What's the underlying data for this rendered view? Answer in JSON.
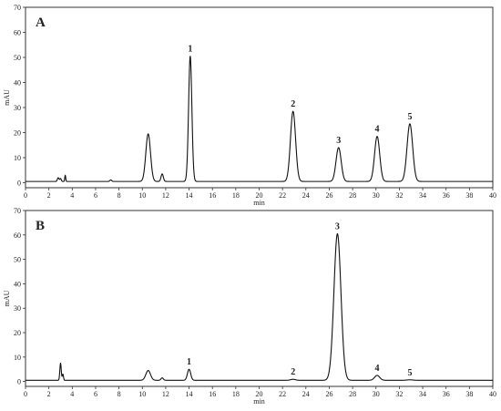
{
  "chart_data": [
    {
      "type": "line",
      "panel_label": "A",
      "xlabel": "min",
      "ylabel": "mAU",
      "xlim": [
        0,
        40
      ],
      "ylim": [
        -2,
        70
      ],
      "x_ticks": [
        0,
        2,
        4,
        6,
        8,
        10,
        12,
        14,
        16,
        18,
        20,
        22,
        24,
        26,
        28,
        30,
        32,
        34,
        36,
        38,
        40
      ],
      "y_ticks": [
        0,
        10,
        20,
        30,
        40,
        50,
        60,
        70
      ],
      "baseline": 0.5,
      "peaks": [
        {
          "t": 2.8,
          "h": 1.5,
          "w": 0.07
        },
        {
          "t": 3.0,
          "h": 1.2,
          "w": 0.06
        },
        {
          "t": 3.4,
          "h": 2.5,
          "w": 0.04
        },
        {
          "t": 7.3,
          "h": 0.6,
          "w": 0.08
        },
        {
          "t": 10.5,
          "h": 19.0,
          "w": 0.2
        },
        {
          "t": 11.7,
          "h": 3.0,
          "w": 0.1
        },
        {
          "t": 14.1,
          "h": 50.0,
          "w": 0.14,
          "label": "1"
        },
        {
          "t": 22.9,
          "h": 28.0,
          "w": 0.22,
          "label": "2"
        },
        {
          "t": 26.8,
          "h": 13.5,
          "w": 0.22,
          "label": "3"
        },
        {
          "t": 30.1,
          "h": 18.0,
          "w": 0.22,
          "label": "4"
        },
        {
          "t": 32.9,
          "h": 23.0,
          "w": 0.24,
          "label": "5"
        }
      ]
    },
    {
      "type": "line",
      "panel_label": "B",
      "xlabel": "min",
      "ylabel": "mAU",
      "xlim": [
        0,
        40
      ],
      "ylim": [
        -2,
        70
      ],
      "x_ticks": [
        0,
        2,
        4,
        6,
        8,
        10,
        12,
        14,
        16,
        18,
        20,
        22,
        24,
        26,
        28,
        30,
        32,
        34,
        36,
        38,
        40
      ],
      "y_ticks": [
        0,
        10,
        20,
        30,
        40,
        50,
        60,
        70
      ],
      "baseline": 0.5,
      "peaks": [
        {
          "t": 3.0,
          "h": 7.0,
          "w": 0.06
        },
        {
          "t": 3.2,
          "h": 2.5,
          "w": 0.05
        },
        {
          "t": 10.5,
          "h": 4.0,
          "w": 0.2
        },
        {
          "t": 11.7,
          "h": 1.0,
          "w": 0.1
        },
        {
          "t": 14.0,
          "h": 4.5,
          "w": 0.14,
          "label": "1"
        },
        {
          "t": 22.9,
          "h": 0.4,
          "w": 0.2,
          "label": "2"
        },
        {
          "t": 26.7,
          "h": 60.0,
          "w": 0.3,
          "label": "3"
        },
        {
          "t": 30.1,
          "h": 2.0,
          "w": 0.22,
          "label": "4"
        },
        {
          "t": 32.9,
          "h": 0.2,
          "w": 0.24,
          "label": "5"
        }
      ]
    }
  ]
}
